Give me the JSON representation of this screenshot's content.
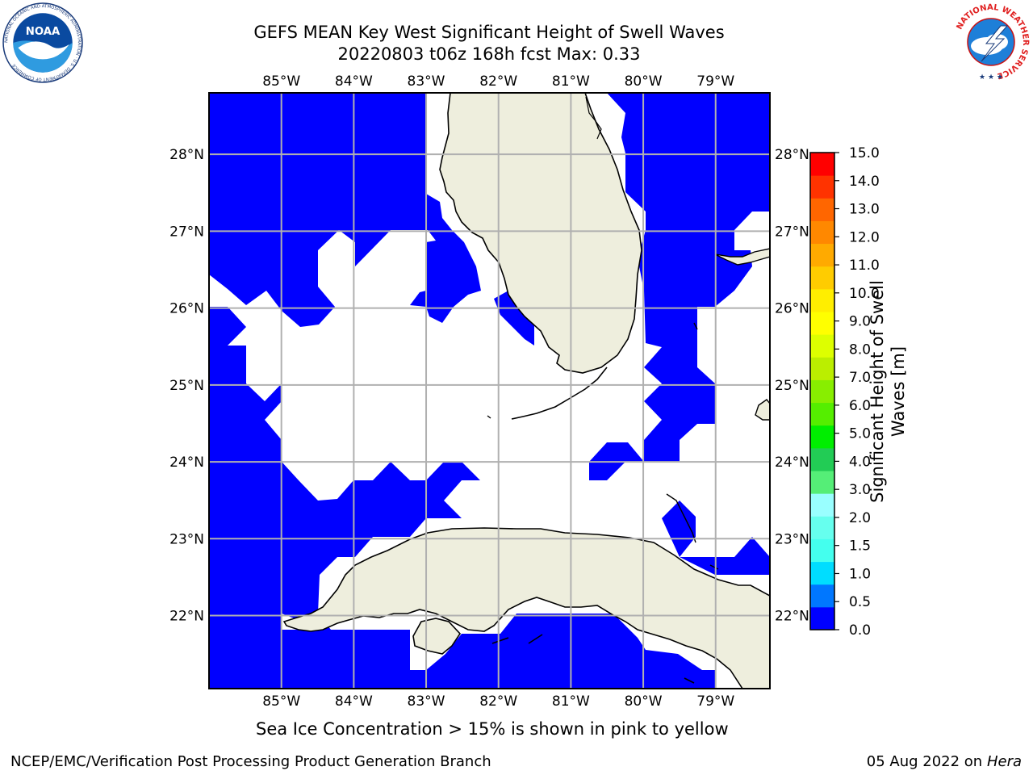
{
  "title": {
    "line1": "GEFS MEAN Key West Significant Height of Swell Waves",
    "line2": "20220803 t06z 168h fcst   Max: 0.33"
  },
  "map": {
    "lon_labels": [
      "85°W",
      "84°W",
      "83°W",
      "82°W",
      "81°W",
      "80°W",
      "79°W"
    ],
    "lat_labels": [
      "28°N",
      "27°N",
      "26°N",
      "25°N",
      "24°N",
      "23°N",
      "22°N"
    ],
    "lon_range": [
      -86.0,
      -78.25
    ],
    "lat_range": [
      21.05,
      28.8
    ],
    "colors": {
      "wave_low": "#0000ff",
      "land": "#eeeedd",
      "grid": "#b0b0b0",
      "no_data": "#ffffff"
    }
  },
  "colorbar": {
    "label": "Significant Height of Swell Waves [m]",
    "ticks": [
      "15.0",
      "14.0",
      "13.0",
      "12.0",
      "11.0",
      "10.0",
      "9.0",
      "8.0",
      "7.0",
      "6.0",
      "5.0",
      "4.0",
      "3.0",
      "2.0",
      "1.5",
      "1.0",
      "0.5",
      "0.0"
    ],
    "colors": [
      "#0000ff",
      "#0077ff",
      "#00ddff",
      "#44ffee",
      "#66ffee",
      "#99ffff",
      "#55ee77",
      "#22cc55",
      "#00ee00",
      "#55ee00",
      "#88ee00",
      "#bbee00",
      "#ddff00",
      "#ffff00",
      "#ffee00",
      "#ffcc00",
      "#ffaa00",
      "#ff8800",
      "#ff6600",
      "#ff3300",
      "#ff0000"
    ]
  },
  "footer": {
    "note": "Sea Ice Concentration > 15% is shown in pink to yellow",
    "credits": "NCEP/EMC/Verification Post Processing Product Generation Branch",
    "date": "05 Aug 2022 on",
    "host": "Hera"
  },
  "logos": {
    "noaa_text": "NOAA",
    "noaa_ring": "NATIONAL OCEANIC AND ATMOSPHERIC ADMINISTRATION · U.S. DEPARTMENT OF COMMERCE",
    "nws_ring": "NATIONAL WEATHER SERVICE"
  }
}
